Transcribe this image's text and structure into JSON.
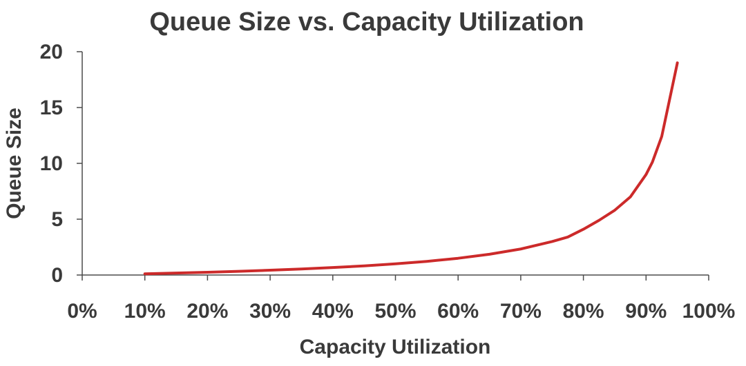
{
  "chart_data": {
    "type": "line",
    "title": "Queue Size vs. Capacity Utilization",
    "xlabel": "Capacity Utilization",
    "ylabel": "Queue Size",
    "xlim": [
      0,
      100
    ],
    "ylim": [
      0,
      20
    ],
    "x_ticks": [
      0,
      10,
      20,
      30,
      40,
      50,
      60,
      70,
      80,
      90,
      100
    ],
    "x_tick_labels": [
      "0%",
      "10%",
      "20%",
      "30%",
      "40%",
      "50%",
      "60%",
      "70%",
      "80%",
      "90%",
      "100%"
    ],
    "y_ticks": [
      0,
      5,
      10,
      15,
      20
    ],
    "y_tick_labels": [
      "0",
      "5",
      "10",
      "15",
      "20"
    ],
    "grid": false,
    "series": [
      {
        "name": "Queue Size",
        "color": "#cc2a2a",
        "x": [
          10,
          15,
          20,
          25,
          30,
          35,
          40,
          45,
          50,
          55,
          60,
          65,
          70,
          75,
          77.5,
          80,
          82.5,
          85,
          87.5,
          90,
          91,
          92.5,
          95
        ],
        "y": [
          0.11,
          0.18,
          0.25,
          0.33,
          0.43,
          0.54,
          0.67,
          0.82,
          1.0,
          1.22,
          1.5,
          1.86,
          2.33,
          3.0,
          3.4,
          4.1,
          4.9,
          5.8,
          7.0,
          9.0,
          10.1,
          12.4,
          19.0
        ]
      }
    ]
  }
}
